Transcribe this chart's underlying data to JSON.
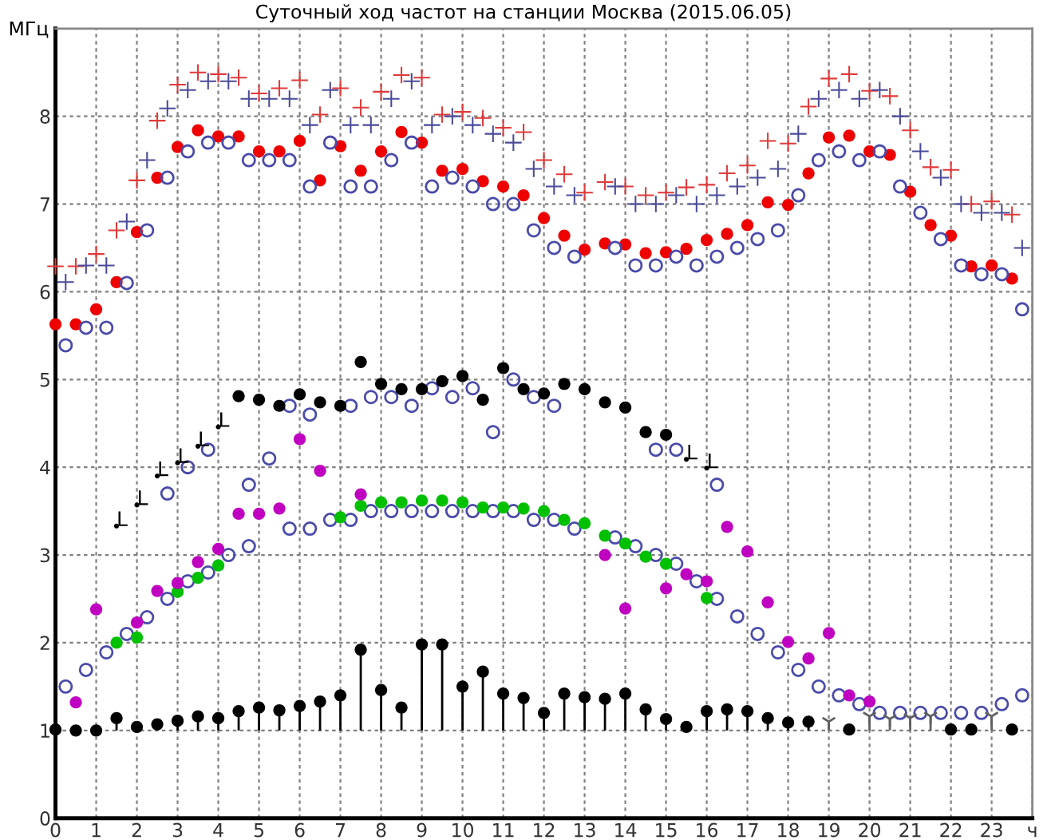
{
  "chart_data": {
    "type": "scatter",
    "title": "Суточный ход частот на станции Москва (2015.06.05)",
    "ylabel": "МГц",
    "xlim": [
      0,
      24
    ],
    "xticks": [
      0,
      1,
      2,
      3,
      4,
      5,
      6,
      7,
      8,
      9,
      10,
      11,
      12,
      13,
      14,
      15,
      16,
      17,
      18,
      19,
      20,
      21,
      22,
      23,
      {
        "value": 24,
        "label": "ч"
      }
    ],
    "ylim": [
      0,
      9
    ],
    "yticks": [
      0,
      1,
      2,
      3,
      4,
      5,
      6,
      7,
      8
    ],
    "grid": true,
    "series": [
      {
        "marker": "cross",
        "color": "#e03a3a",
        "x": [
          0,
          0.5,
          1,
          1.5,
          2,
          2.5,
          3,
          3.5,
          4,
          4.5,
          5,
          5.5,
          6,
          6.5,
          7,
          7.5,
          8,
          8.5,
          9,
          9.5,
          10,
          10.5,
          11,
          11.5,
          12,
          12.5,
          13,
          13.5,
          14,
          14.5,
          15,
          15.5,
          16,
          16.5,
          17,
          17.5,
          18,
          18.5,
          19,
          19.5,
          20,
          20.5,
          21,
          21.5,
          22,
          22.5,
          23,
          23.5
        ],
        "values": [
          6.29,
          6.29,
          6.43,
          6.7,
          7.27,
          7.95,
          8.36,
          8.5,
          8.48,
          8.44,
          8.26,
          8.32,
          8.41,
          8.02,
          8.32,
          8.1,
          8.28,
          8.47,
          8.44,
          8.02,
          8.05,
          7.98,
          7.87,
          7.82,
          7.5,
          7.34,
          7.13,
          7.25,
          7.2,
          7.1,
          7.13,
          7.19,
          7.22,
          7.35,
          7.44,
          7.72,
          7.69,
          8.11,
          8.43,
          8.48,
          8.29,
          8.23,
          7.84,
          7.42,
          7.39,
          7.0,
          7.03,
          6.88
        ]
      },
      {
        "marker": "cross",
        "color": "#4a4a9a",
        "x": [
          0.25,
          0.75,
          1.25,
          1.75,
          2.25,
          2.75,
          3.25,
          3.75,
          4.25,
          4.75,
          5.25,
          5.75,
          6.25,
          6.75,
          7.25,
          7.75,
          8.25,
          8.75,
          9.25,
          9.75,
          10.25,
          10.75,
          11.25,
          11.75,
          12.25,
          12.75,
          13.25,
          13.75,
          14.25,
          14.75,
          15.25,
          15.75,
          16.25,
          16.75,
          17.25,
          17.75,
          18.25,
          18.75,
          19.25,
          19.75,
          20.25,
          20.75,
          21.25,
          21.75,
          22.25,
          22.75,
          23.25,
          23.75
        ],
        "values": [
          6.11,
          6.3,
          6.3,
          6.8,
          7.5,
          8.09,
          8.3,
          8.4,
          8.4,
          8.2,
          8.2,
          8.2,
          7.9,
          8.3,
          7.9,
          7.9,
          8.2,
          8.4,
          7.9,
          8.0,
          7.9,
          7.8,
          7.7,
          7.4,
          7.2,
          7.1,
          null,
          7.2,
          7.0,
          7.0,
          7.1,
          7.0,
          7.1,
          7.2,
          7.3,
          7.4,
          7.8,
          8.2,
          8.3,
          8.2,
          8.3,
          8.0,
          7.6,
          7.3,
          7.0,
          6.9,
          6.9,
          6.5
        ]
      },
      {
        "marker": "circle",
        "color": "#ee0000",
        "x": [
          0,
          0.5,
          1,
          1.5,
          2,
          2.5,
          3,
          3.5,
          4,
          4.5,
          5,
          5.5,
          6,
          6.5,
          7,
          7.5,
          8,
          8.5,
          9,
          9.5,
          10,
          10.5,
          11,
          11.5,
          12,
          12.5,
          13,
          13.5,
          14,
          14.5,
          15,
          15.5,
          16,
          16.5,
          17,
          17.5,
          18,
          18.5,
          19,
          19.5,
          20,
          20.5,
          21,
          21.5,
          22,
          22.5,
          23,
          23.5
        ],
        "values": [
          5.63,
          5.63,
          5.8,
          6.11,
          6.68,
          7.3,
          7.65,
          7.84,
          7.77,
          7.77,
          7.6,
          7.6,
          7.72,
          7.27,
          7.66,
          7.38,
          7.6,
          7.82,
          7.7,
          7.38,
          7.4,
          7.26,
          7.2,
          7.1,
          6.84,
          6.64,
          6.48,
          6.55,
          6.54,
          6.44,
          6.45,
          6.49,
          6.59,
          6.66,
          6.76,
          7.02,
          6.99,
          7.35,
          7.76,
          7.78,
          7.6,
          7.56,
          7.14,
          6.76,
          6.64,
          6.29,
          6.3,
          6.15
        ]
      },
      {
        "marker": "circle-open",
        "color": "#4a4aaa",
        "x": [
          0.25,
          0.75,
          1.25,
          1.75,
          2.25,
          2.75,
          3.25,
          3.75,
          4.25,
          4.75,
          5.25,
          5.75,
          6.25,
          6.75,
          7.25,
          7.75,
          8.25,
          8.75,
          9.25,
          9.75,
          10.25,
          10.75,
          11.25,
          11.75,
          12.25,
          12.75,
          13.25,
          13.75,
          14.25,
          14.75,
          15.25,
          15.75,
          16.25,
          16.75,
          17.25,
          17.75,
          18.25,
          18.75,
          19.25,
          19.75,
          20.25,
          20.75,
          21.25,
          21.75,
          22.25,
          22.75,
          23.25,
          23.75
        ],
        "values": [
          5.39,
          5.59,
          5.59,
          6.1,
          6.7,
          7.3,
          7.6,
          7.7,
          7.7,
          7.5,
          7.5,
          7.5,
          7.2,
          7.7,
          7.2,
          7.2,
          7.5,
          7.7,
          7.2,
          7.3,
          7.2,
          7.0,
          7.0,
          6.7,
          6.5,
          6.4,
          null,
          6.5,
          6.3,
          6.3,
          6.4,
          6.3,
          6.4,
          6.5,
          6.6,
          6.7,
          7.1,
          7.5,
          7.6,
          7.5,
          7.6,
          7.2,
          6.9,
          6.6,
          6.3,
          6.2,
          6.2,
          5.8
        ]
      },
      {
        "marker": "circle-open",
        "color": "#4a4aaa",
        "x": [
          2.75,
          3.25,
          3.75,
          4.75,
          5.25,
          5.75,
          6.25,
          7.25,
          7.75,
          8.25,
          8.75,
          9.25,
          9.75,
          10.25,
          10.75,
          11.25,
          11.75,
          12.25,
          14.75,
          15.25,
          16.25
        ],
        "values": [
          3.7,
          4.0,
          4.2,
          3.8,
          4.1,
          4.7,
          4.6,
          4.7,
          4.8,
          4.8,
          4.7,
          4.9,
          4.8,
          4.9,
          4.4,
          5.0,
          4.8,
          4.7,
          4.2,
          4.2,
          3.8
        ]
      },
      {
        "marker": "circle-open",
        "color": "#4a4aaa",
        "x": [
          0.25,
          0.75,
          1.25,
          1.75,
          2.25,
          2.75,
          3.25,
          3.75,
          4.25,
          4.75,
          5.75,
          6.25,
          6.75,
          7.25,
          7.75,
          8.25,
          8.75,
          9.25,
          9.75,
          10.25,
          10.75,
          11.25,
          11.75,
          12.25,
          12.75,
          13.75,
          14.25,
          14.75,
          15.25,
          15.75,
          16.25,
          16.75,
          17.25,
          17.75,
          18.25,
          18.75,
          19.25,
          19.75,
          20.25,
          20.75,
          21.25,
          21.75,
          22.25,
          22.75,
          23.25,
          23.75
        ],
        "values": [
          1.5,
          1.69,
          1.89,
          2.1,
          2.29,
          2.5,
          2.7,
          2.8,
          3.0,
          3.1,
          3.3,
          3.3,
          3.4,
          3.4,
          3.5,
          3.5,
          3.5,
          3.5,
          3.5,
          3.5,
          3.5,
          3.5,
          3.4,
          3.4,
          3.3,
          3.2,
          3.1,
          3.0,
          2.9,
          2.7,
          2.5,
          2.3,
          2.1,
          1.89,
          1.69,
          1.5,
          1.4,
          1.3,
          1.2,
          1.2,
          1.2,
          1.2,
          1.2,
          1.2,
          1.3,
          1.4
        ]
      },
      {
        "marker": "circle",
        "color": "#000000",
        "x": [
          4.5,
          5,
          5.5,
          6,
          6.5,
          7,
          7.5,
          8,
          8.5,
          9,
          9.5,
          10,
          10.5,
          11,
          11.5,
          12,
          12.5,
          13,
          13.5,
          14,
          14.5,
          15
        ],
        "values": [
          4.81,
          4.77,
          4.7,
          4.83,
          4.74,
          4.7,
          5.2,
          4.95,
          4.89,
          4.89,
          4.98,
          5.04,
          4.77,
          5.13,
          4.89,
          4.84,
          4.95,
          4.89,
          4.74,
          4.68,
          4.4,
          4.37
        ]
      },
      {
        "marker": "circle",
        "color": "#000000",
        "x": [
          1.5,
          2,
          2.5,
          3,
          3.5,
          4,
          15.5,
          16
        ],
        "values": [
          3.33,
          3.57,
          3.9,
          4.05,
          4.24,
          4.46,
          4.09,
          3.99
        ],
        "value_labels": [
          "L",
          "L",
          "L",
          "L",
          "L",
          "L",
          "L",
          "L"
        ]
      },
      {
        "marker": "circle",
        "color": "#00c000",
        "x": [
          1.5,
          2,
          3,
          3.5,
          4,
          7,
          7.5,
          8,
          8.5,
          9,
          9.5,
          10,
          10.5,
          11,
          11.5,
          12,
          12.5,
          13,
          13.5,
          14,
          14.5,
          15,
          16
        ],
        "values": [
          2.0,
          2.06,
          2.58,
          2.74,
          2.88,
          3.43,
          3.56,
          3.6,
          3.6,
          3.62,
          3.62,
          3.6,
          3.54,
          3.54,
          3.53,
          3.5,
          3.4,
          3.36,
          3.22,
          3.13,
          2.98,
          2.9,
          2.51
        ]
      },
      {
        "marker": "circle",
        "color": "#c000c0",
        "x": [
          0.5,
          1,
          2,
          2.5,
          3,
          3.5,
          4,
          4.5,
          5,
          5.5,
          6,
          6.5,
          7.5,
          13.5,
          14,
          15,
          15.5,
          16,
          16.5,
          17,
          17.5,
          18,
          18.5,
          19,
          19.5,
          20
        ],
        "values": [
          1.32,
          2.38,
          2.23,
          2.59,
          2.68,
          2.92,
          3.07,
          3.47,
          3.47,
          3.53,
          4.32,
          3.96,
          3.69,
          3.0,
          2.39,
          2.62,
          2.78,
          2.7,
          3.32,
          3.04,
          2.46,
          2.01,
          1.82,
          2.11,
          1.4,
          1.33
        ]
      },
      {
        "marker": "circle",
        "color": "#000000",
        "x": [
          0,
          0.5,
          1,
          1.5,
          2,
          2.5,
          3,
          3.5,
          4,
          4.5,
          5,
          5.5,
          6,
          6.5,
          7,
          7.5,
          8,
          8.5,
          9,
          9.5,
          10,
          10.5,
          11,
          11.5,
          12,
          12.5,
          13,
          13.5,
          14,
          14.5,
          15,
          15.5,
          16,
          16.5,
          17,
          17.5,
          18,
          18.5,
          19.5,
          22,
          22.5,
          23.5
        ],
        "values": [
          1.01,
          1.0,
          1.0,
          1.14,
          1.04,
          1.07,
          1.11,
          1.16,
          1.14,
          1.22,
          1.26,
          1.23,
          1.28,
          1.33,
          1.4,
          1.92,
          1.46,
          1.26,
          1.98,
          1.98,
          1.5,
          1.67,
          1.42,
          1.37,
          1.2,
          1.42,
          1.38,
          1.36,
          1.42,
          1.24,
          1.13,
          1.04,
          1.22,
          1.24,
          1.22,
          1.14,
          1.09,
          1.1,
          1.01,
          1.01,
          1.01,
          1.01
        ],
        "errors": [
          null,
          null,
          null,
          [
            1,
            1.14
          ],
          [
            1,
            1.04
          ],
          [
            1,
            1.07
          ],
          [
            1,
            1.11
          ],
          [
            1,
            1.16
          ],
          [
            1,
            1.14
          ],
          [
            1,
            1.22
          ],
          [
            1,
            1.26
          ],
          [
            1,
            1.23
          ],
          [
            1,
            1.28
          ],
          [
            1,
            1.33
          ],
          [
            1,
            1.4
          ],
          [
            1,
            1.92
          ],
          [
            1,
            1.46
          ],
          [
            1,
            1.26
          ],
          [
            1,
            1.98
          ],
          [
            1,
            1.98
          ],
          [
            1,
            1.5
          ],
          [
            1,
            1.67
          ],
          [
            1,
            1.42
          ],
          [
            1,
            1.37
          ],
          [
            1,
            1.2
          ],
          [
            1,
            1.42
          ],
          [
            1,
            1.38
          ],
          [
            1,
            1.36
          ],
          [
            1,
            1.42
          ],
          [
            1,
            1.24
          ],
          [
            1,
            1.13
          ],
          [
            1,
            1.04
          ],
          [
            1,
            1.22
          ],
          [
            1,
            1.24
          ],
          [
            1,
            1.22
          ],
          [
            1,
            1.14
          ],
          [
            1,
            1.09
          ],
          [
            1,
            1.1
          ],
          null,
          null,
          null,
          null
        ]
      },
      {
        "marker": "cross",
        "color": "#606060",
        "x": [
          19,
          20,
          20.5,
          21,
          21.5,
          23
        ],
        "values": [
          1.1,
          1.16,
          1.13,
          1.14,
          1.16,
          1.16
        ],
        "errors": [
          [
            1,
            1.1
          ],
          [
            1,
            1.16
          ],
          [
            1,
            1.13
          ],
          [
            1,
            1.14
          ],
          [
            1,
            1.16
          ],
          [
            1,
            1.16
          ]
        ]
      }
    ]
  }
}
